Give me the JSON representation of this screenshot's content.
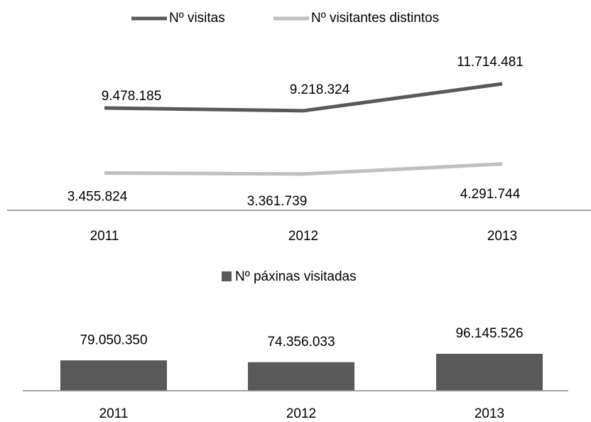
{
  "chart_data": [
    {
      "type": "line",
      "categories": [
        "2011",
        "2012",
        "2013"
      ],
      "series": [
        {
          "name": "Nº visitas",
          "color": "#595959",
          "values": [
            9478185,
            9218324,
            11714481
          ],
          "value_labels": [
            "9.478.185",
            "9.218.324",
            "11.714.481"
          ]
        },
        {
          "name": "Nº visitantes  distintos",
          "color": "#bfbfbf",
          "values": [
            3455824,
            3361739,
            4291744
          ],
          "value_labels": [
            "3.455.824",
            "3.361.739",
            "4.291.744"
          ]
        }
      ],
      "legend": "top"
    },
    {
      "type": "bar",
      "categories": [
        "2011",
        "2012",
        "2013"
      ],
      "series": [
        {
          "name": "Nº páxinas visitadas",
          "color": "#595959",
          "values": [
            79050350,
            74356033,
            96145526
          ],
          "value_labels": [
            "79.050.350",
            "74.356.033",
            "96.145.526"
          ]
        }
      ],
      "legend": "top"
    }
  ]
}
